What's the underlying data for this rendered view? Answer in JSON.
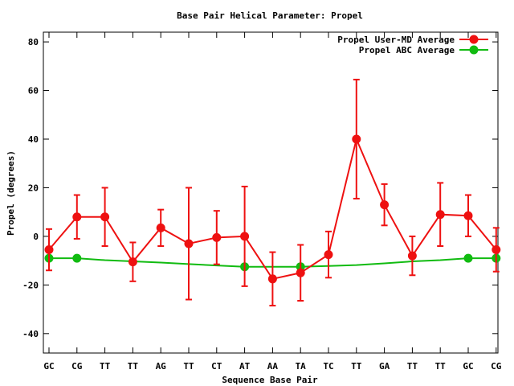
{
  "chart_data": {
    "type": "line",
    "title": "Base Pair Helical Parameter: Propel",
    "xlabel": "Sequence Base Pair",
    "ylabel": "Propel (degrees)",
    "categories": [
      "GC",
      "CG",
      "TT",
      "TT",
      "AG",
      "TT",
      "CT",
      "AT",
      "AA",
      "TA",
      "TC",
      "TT",
      "GA",
      "TT",
      "TT",
      "GC",
      "CG"
    ],
    "ylim": [
      -48,
      84
    ],
    "yticks": [
      -40,
      -20,
      0,
      20,
      40,
      60,
      80
    ],
    "grid": false,
    "legend_position": "top-right",
    "series": [
      {
        "name": "Propel User-MD Average",
        "color": "#ee1111",
        "values": [
          -5.5,
          8.0,
          8.0,
          -10.5,
          3.5,
          -3.0,
          -0.5,
          0.0,
          -17.5,
          -15.0,
          -7.5,
          40.0,
          13.0,
          -8.0,
          9.0,
          8.5,
          -5.5
        ],
        "error": [
          8.5,
          9.0,
          12.0,
          8.0,
          7.5,
          23.0,
          11.0,
          20.5,
          11.0,
          11.5,
          9.5,
          24.5,
          8.5,
          8.0,
          13.0,
          8.5,
          9.0
        ]
      },
      {
        "name": "Propel ABC Average",
        "color": "#11bb11",
        "values": [
          -9.0,
          -9.0,
          null,
          null,
          null,
          null,
          null,
          -12.5,
          null,
          -12.5,
          null,
          null,
          null,
          null,
          null,
          -9.0,
          -9.0
        ],
        "line_values": [
          -9.0,
          -9.0,
          -9.8,
          -10.3,
          -10.8,
          -11.4,
          -12.0,
          -12.5,
          -12.5,
          -12.5,
          -12.2,
          -11.8,
          -11.1,
          -10.3,
          -9.8,
          -9.0,
          -9.0
        ]
      }
    ]
  }
}
